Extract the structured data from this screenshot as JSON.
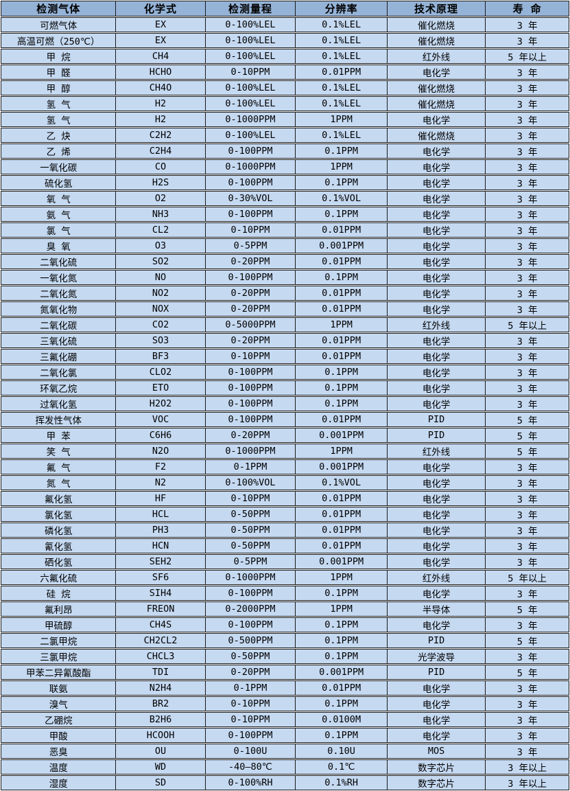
{
  "colors": {
    "header_bg": "#95b3d7",
    "row_bg": "#c5d9f1",
    "border": "#1a1a1a",
    "gap": "#ffffff",
    "text": "#000000"
  },
  "chart_data": {
    "type": "table",
    "columns": [
      "检测气体",
      "化学式",
      "检测量程",
      "分辨率",
      "技术原理",
      "寿 命"
    ],
    "column_keys": [
      "gas",
      "formula",
      "range",
      "resolution",
      "principle",
      "lifespan"
    ],
    "rows": [
      [
        "可燃气体",
        "EX",
        "0-100%LEL",
        "0.1%LEL",
        "催化燃烧",
        "3 年"
      ],
      [
        "高温可燃（250℃）",
        "EX",
        "0-100%LEL",
        "0.1%LEL",
        "催化燃烧",
        "3 年"
      ],
      [
        "甲 烷",
        "CH4",
        "0-100%LEL",
        "0.1%LEL",
        "红外线",
        "5 年以上"
      ],
      [
        "甲 醛",
        "HCHO",
        "0-10PPM",
        "0.01PPM",
        "电化学",
        "3 年"
      ],
      [
        "甲 醇",
        "CH4O",
        "0-100%LEL",
        "0.1%LEL",
        "催化燃烧",
        "3 年"
      ],
      [
        "氢 气",
        "H2",
        "0-100%LEL",
        "0.1%LEL",
        "催化燃烧",
        "3 年"
      ],
      [
        "氢 气",
        "H2",
        "0-1000PPM",
        "1PPM",
        "电化学",
        "3 年"
      ],
      [
        "乙 炔",
        "C2H2",
        "0-100%LEL",
        "0.1%LEL",
        "催化燃烧",
        "3 年"
      ],
      [
        "乙 烯",
        "C2H4",
        "0-100PPM",
        "0.1PPM",
        "电化学",
        "3 年"
      ],
      [
        "一氧化碳",
        "CO",
        "0-1000PPM",
        "1PPM",
        "电化学",
        "3 年"
      ],
      [
        "硫化氢",
        "H2S",
        "0-100PPM",
        "0.1PPM",
        "电化学",
        "3 年"
      ],
      [
        "氧 气",
        "O2",
        "0-30%VOL",
        "0.1%VOL",
        "电化学",
        "3 年"
      ],
      [
        "氨 气",
        "NH3",
        "0-100PPM",
        "0.1PPM",
        "电化学",
        "3 年"
      ],
      [
        "氯 气",
        "CL2",
        "0-10PPM",
        "0.01PPM",
        "电化学",
        "3 年"
      ],
      [
        "臭 氧",
        "O3",
        "0-5PPM",
        "0.001PPM",
        "电化学",
        "3 年"
      ],
      [
        "二氧化硫",
        "SO2",
        "0-20PPM",
        "0.01PPM",
        "电化学",
        "3 年"
      ],
      [
        "一氧化氮",
        "NO",
        "0-100PPM",
        "0.1PPM",
        "电化学",
        "3 年"
      ],
      [
        "二氧化氮",
        "NO2",
        "0-20PPM",
        "0.01PPM",
        "电化学",
        "3 年"
      ],
      [
        "氮氧化物",
        "NOX",
        "0-20PPM",
        "0.01PPM",
        "电化学",
        "3 年"
      ],
      [
        "二氧化碳",
        "CO2",
        "0-5000PPM",
        "1PPM",
        "红外线",
        "5 年以上"
      ],
      [
        "三氧化硫",
        "SO3",
        "0-20PPM",
        "0.01PPM",
        "电化学",
        "3 年"
      ],
      [
        "三氟化硼",
        "BF3",
        "0-10PPM",
        "0.01PPM",
        "电化学",
        "3 年"
      ],
      [
        "二氧化氯",
        "CLO2",
        "0-100PPM",
        "0.1PPM",
        "电化学",
        "3 年"
      ],
      [
        "环氧乙烷",
        "ETO",
        "0-100PPM",
        "0.1PPM",
        "电化学",
        "3 年"
      ],
      [
        "过氧化氢",
        "H2O2",
        "0-100PPM",
        "0.1PPM",
        "电化学",
        "3 年"
      ],
      [
        "挥发性气体",
        "VOC",
        "0-100PPM",
        "0.01PPM",
        "PID",
        "5 年"
      ],
      [
        "甲 苯",
        "C6H6",
        "0-20PPM",
        "0.001PPM",
        "PID",
        "5 年"
      ],
      [
        "笑 气",
        "N2O",
        "0-1000PPM",
        "1PPM",
        "红外线",
        "5 年"
      ],
      [
        "氟 气",
        "F2",
        "0-1PPM",
        "0.001PPM",
        "电化学",
        "3 年"
      ],
      [
        "氮 气",
        "N2",
        "0-100%VOL",
        "0.1%VOL",
        "电化学",
        "3 年"
      ],
      [
        "氟化氢",
        "HF",
        "0-10PPM",
        "0.01PPM",
        "电化学",
        "3 年"
      ],
      [
        "氯化氢",
        "HCL",
        "0-50PPM",
        "0.01PPM",
        "电化学",
        "3 年"
      ],
      [
        "磷化氢",
        "PH3",
        "0-50PPM",
        "0.01PPM",
        "电化学",
        "3 年"
      ],
      [
        "氰化氢",
        "HCN",
        "0-50PPM",
        "0.01PPM",
        "电化学",
        "3 年"
      ],
      [
        "硒化氢",
        "SEH2",
        "0-5PPM",
        "0.001PPM",
        "电化学",
        "3 年"
      ],
      [
        "六氟化硫",
        "SF6",
        "0-1000PPM",
        "1PPM",
        "红外线",
        "5 年以上"
      ],
      [
        "硅 烷",
        "SIH4",
        "0-100PPM",
        "0.1PPM",
        "电化学",
        "3 年"
      ],
      [
        "氟利昂",
        "FREON",
        "0-2000PPM",
        "1PPM",
        "半导体",
        "5 年"
      ],
      [
        "甲硫醇",
        "CH4S",
        "0-100PPM",
        "0.1PPM",
        "电化学",
        "3 年"
      ],
      [
        "二氯甲烷",
        "CH2CL2",
        "0-500PPM",
        "0.1PPM",
        "PID",
        "5 年"
      ],
      [
        "三氯甲烷",
        "CHCL3",
        "0-50PPM",
        "0.1PPM",
        "光学波导",
        "3 年"
      ],
      [
        "甲苯二异氰酸酯",
        "TDI",
        "0-20PPM",
        "0.001PPM",
        "PID",
        "5 年"
      ],
      [
        "联氨",
        "N2H4",
        "0-1PPM",
        "0.01PPM",
        "电化学",
        "3 年"
      ],
      [
        "溴气",
        "BR2",
        "0-10PPM",
        "0.1PPM",
        "电化学",
        "3 年"
      ],
      [
        "乙硼烷",
        "B2H6",
        "0-10PPM",
        "0.0100M",
        "电化学",
        "3 年"
      ],
      [
        "甲酸",
        "HCOOH",
        "0-100PPM",
        "0.1PPM",
        "电化学",
        "3 年"
      ],
      [
        "恶臭",
        "OU",
        "0-100U",
        "0.10U",
        "MOS",
        "3 年"
      ],
      [
        "温度",
        "WD",
        "-40—80℃",
        "0.1℃",
        "数字芯片",
        "3 年以上"
      ],
      [
        "湿度",
        "SD",
        "0-100%RH",
        "0.1%RH",
        "数字芯片",
        "3 年以上"
      ]
    ]
  }
}
